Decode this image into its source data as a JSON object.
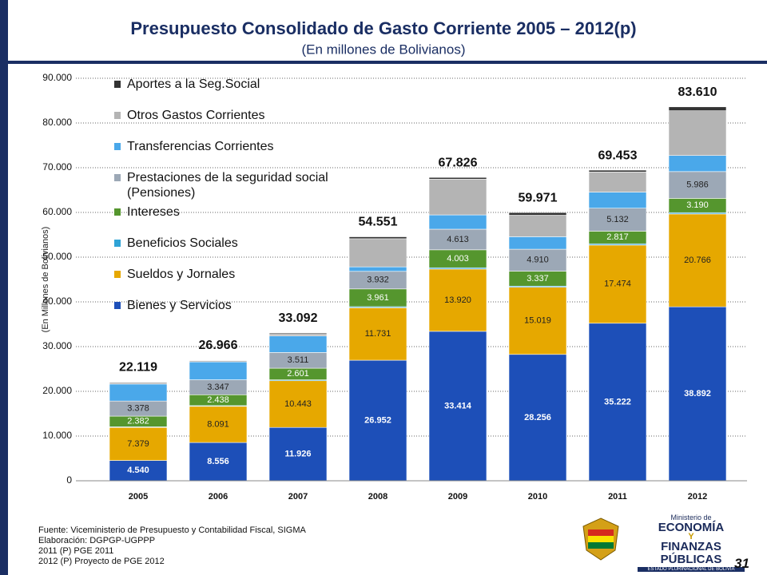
{
  "chart_data": {
    "type": "stacked-bar",
    "title": "Presupuesto Consolidado de Gasto Corriente 2005 – 2012(p)",
    "subtitle": "(En millones de Bolivianos)",
    "y_label": "(En Millones de Bolivianos)",
    "categories": [
      "2005",
      "2006",
      "2007",
      "2008",
      "2009",
      "2010",
      "2011",
      "2012"
    ],
    "ylim": [
      0,
      90000
    ],
    "yticks": [
      0,
      {
        "value": 10000,
        "label": "10.000"
      },
      {
        "value": 20000,
        "label": "20.000"
      },
      {
        "value": 30000,
        "label": "30.000"
      },
      {
        "value": 40000,
        "label": "40.000"
      },
      {
        "value": 50000,
        "label": "50.000"
      },
      {
        "value": 60000,
        "label": "60.000"
      },
      {
        "value": 70000,
        "label": "70.000"
      },
      {
        "value": 80000,
        "label": "80.000"
      },
      {
        "value": 90000,
        "label": "90.000"
      }
    ],
    "grid": true,
    "legend": "top-left",
    "series": [
      {
        "name": "Bienes y Servicios",
        "color": "#1d4fb8",
        "values": [
          4540,
          8556,
          11926,
          26952,
          33414,
          28256,
          35222,
          38892
        ],
        "value_labels": [
          "4.540",
          "8.556",
          "11.926",
          "26.952",
          "33.414",
          "28.256",
          "35.222",
          "38.892"
        ]
      },
      {
        "name": "Sueldos y Jornales",
        "color": "#e6a800",
        "values": [
          7379,
          8091,
          10443,
          11731,
          13920,
          15019,
          17474,
          20766
        ],
        "value_labels": [
          "7.379",
          "8.091",
          "10.443",
          "11.731",
          "13.920",
          "15.019",
          "17.474",
          "20.766"
        ]
      },
      {
        "name": "Beneficios Sociales",
        "color": "#2fa3d6",
        "values": [
          150,
          150,
          200,
          250,
          300,
          250,
          300,
          300
        ]
      },
      {
        "name": "Intereses",
        "color": "#55962e",
        "values": [
          2382,
          2438,
          2601,
          3961,
          4003,
          3337,
          2817,
          3190
        ],
        "value_labels": [
          "2.382",
          "2.438",
          "2.601",
          "3.961",
          "4.003",
          "3.337",
          "2.817",
          "3.190"
        ]
      },
      {
        "name": "Prestaciones de la seguridad social (Pensiones)",
        "color": "#9ca8b6",
        "values": [
          3378,
          3347,
          3511,
          3932,
          4613,
          4910,
          5132,
          5986
        ],
        "value_labels": [
          "3.378",
          "3.347",
          "3.511",
          "3.932",
          "4.613",
          "4.910",
          "5.132",
          "5.986"
        ]
      },
      {
        "name": "Transferencias Corrientes",
        "color": "#4aa8ea",
        "values": [
          3800,
          4000,
          3700,
          1000,
          3200,
          2800,
          3600,
          3600
        ]
      },
      {
        "name": "Otros Gastos Corrientes",
        "color": "#b4b4b4",
        "values": [
          400,
          300,
          500,
          6300,
          8000,
          4800,
          4500,
          10000
        ]
      },
      {
        "name": "Aportes a la Seg.Social",
        "color": "#333333",
        "values": [
          90,
          84,
          211,
          425,
          376,
          599,
          408,
          876
        ]
      }
    ],
    "totals": {
      "values": [
        22119,
        26966,
        33092,
        54551,
        67826,
        59971,
        69453,
        83610
      ],
      "value_labels": [
        "22.119",
        "26.966",
        "33.092",
        "54.551",
        "67.826",
        "59.971",
        "69.453",
        "83.610"
      ]
    }
  },
  "footer": {
    "source_lines": [
      "Fuente: Viceministerio de Presupuesto y Contabilidad Fiscal, SIGMA",
      "Elaboración: DGPGP-UGPPP",
      "2011 (P) PGE 2011",
      "2012 (P) Proyecto de PGE 2012"
    ],
    "page_number": "31"
  },
  "logo": {
    "line1": "Ministerio de",
    "line2": "ECONOMÍA",
    "line3": "Y",
    "line4": "FINANZAS PÚBLICAS",
    "line5": "ESTADO PLURINACIONAL DE BOLIVIA"
  }
}
